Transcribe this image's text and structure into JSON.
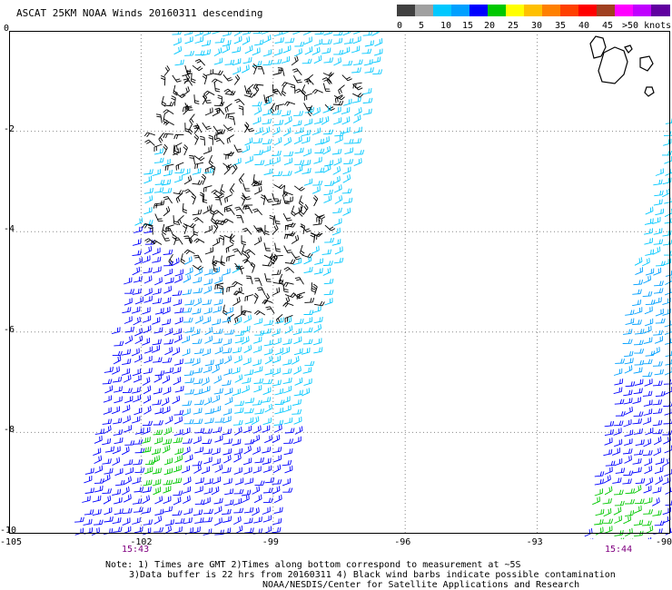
{
  "title": "ASCAT 25KM NOAA Winds 20160311 descending",
  "legend": {
    "colors": [
      "#404040",
      "#a0a0a0",
      "#00c8ff",
      "#00a0ff",
      "#0000ff",
      "#00c800",
      "#ffff00",
      "#ffc000",
      "#ff8000",
      "#ff4000",
      "#ff0000",
      "#a04020",
      "#ff00ff",
      "#c000ff",
      "#6000a0"
    ],
    "labels": [
      "0",
      "5",
      "10",
      "15",
      "20",
      "25",
      "30",
      "35",
      "40",
      "45",
      ">50 knots"
    ]
  },
  "axes": {
    "x_ticks": [
      "-105",
      "-102",
      "-99",
      "-96",
      "-93",
      "-90"
    ],
    "y_ticks": [
      "0",
      "-2",
      "-4",
      "-6",
      "-8",
      "-10"
    ]
  },
  "pass_times": [
    "15:43",
    "15:44"
  ],
  "notes": [
    "Note: 1) Times are GMT 2)Times along bottom correspond to measurement at ~5S",
    "3)Data buffer is 22 hrs from 20160311 4) Black wind barbs indicate possible contamination",
    "NOAA/NESDIS/Center for Satellite Applications and Research"
  ],
  "barb_colors": {
    "contaminated": "#000000",
    "light": "#00c8ff",
    "moderate": "#00a0ff",
    "fresh": "#0000ff",
    "strong": "#00c800",
    "coast": "#000000"
  }
}
